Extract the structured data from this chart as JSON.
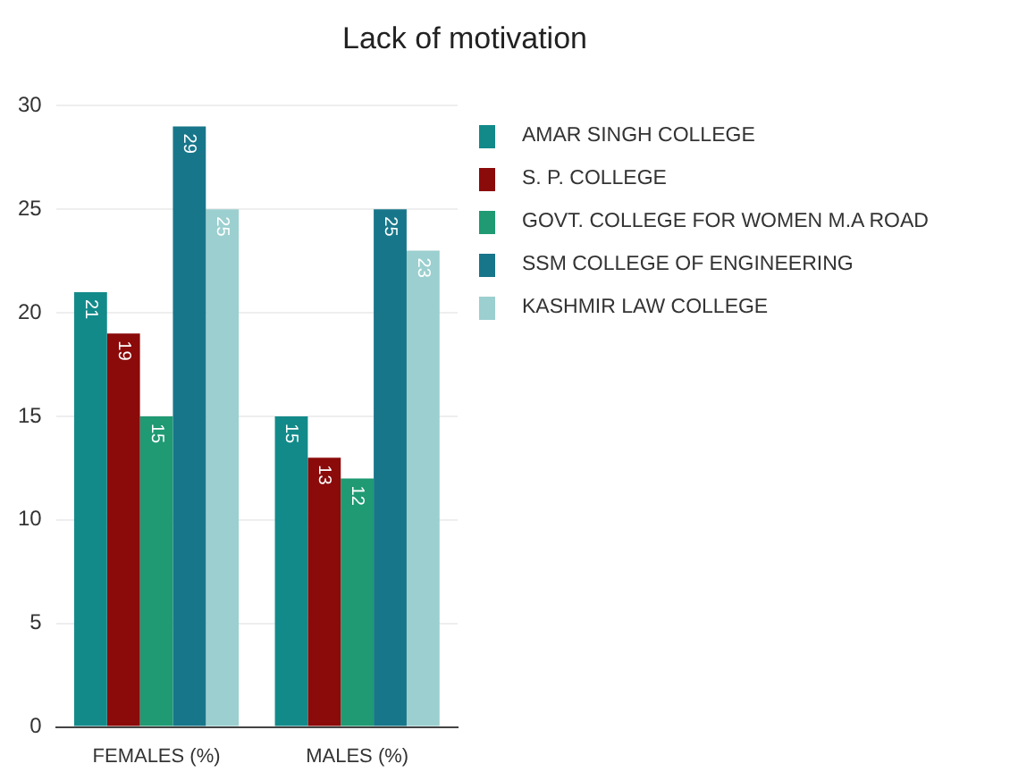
{
  "chart_data": {
    "type": "bar",
    "title": "Lack of motivation",
    "categories": [
      "FEMALES (%)",
      "MALES (%)"
    ],
    "series": [
      {
        "name": "AMAR SINGH COLLEGE",
        "color": "#138a8a",
        "values": [
          21,
          15
        ]
      },
      {
        "name": "S. P. COLLEGE",
        "color": "#8b0a0a",
        "values": [
          19,
          13
        ]
      },
      {
        "name": "GOVT. COLLEGE FOR WOMEN M.A ROAD",
        "color": "#1f9a73",
        "values": [
          15,
          12
        ]
      },
      {
        "name": "SSM COLLEGE OF ENGINEERING",
        "color": "#18768a",
        "values": [
          29,
          25
        ]
      },
      {
        "name": "KASHMIR LAW COLLEGE",
        "color": "#9ccfcf",
        "values": [
          25,
          23
        ]
      }
    ],
    "ylim": [
      0,
      30
    ],
    "yticks": [
      0,
      5,
      10,
      15,
      20,
      25,
      30
    ],
    "grid": "y",
    "legend": "top right",
    "data_labels": true
  }
}
